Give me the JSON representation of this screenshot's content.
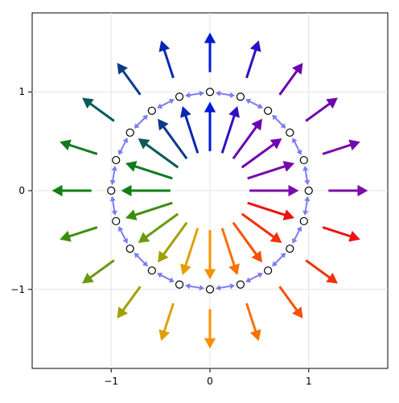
{
  "chart_data": {
    "type": "vector-field",
    "title": "",
    "xlabel": "",
    "ylabel": "",
    "xlim": [
      -1.8,
      1.8
    ],
    "ylim": [
      -1.8,
      1.8
    ],
    "xticks": [
      -1,
      0,
      1
    ],
    "yticks": [
      -1,
      0,
      1
    ],
    "xtick_labels": [
      "−1",
      "0",
      "1"
    ],
    "ytick_labels": [
      "−1",
      "0",
      "1"
    ],
    "grid": true,
    "n_directions": 20,
    "ring_radius": 1.0,
    "outer_arrows": {
      "start_radius": 1.2,
      "end_radius": 1.6
    },
    "inner_arrows": {
      "start_radius": 0.4,
      "end_radius": 0.9
    },
    "color_stops": [
      {
        "angle_deg": 0,
        "color": "#7b0ca8"
      },
      {
        "angle_deg": 54,
        "color": "#6a00b0"
      },
      {
        "angle_deg": 90,
        "color": "#0018d8"
      },
      {
        "angle_deg": 126,
        "color": "#0c3a8c"
      },
      {
        "angle_deg": 144,
        "color": "#0a5a5a"
      },
      {
        "angle_deg": 162,
        "color": "#107a20"
      },
      {
        "angle_deg": 180,
        "color": "#108010"
      },
      {
        "angle_deg": 216,
        "color": "#6a9a10"
      },
      {
        "angle_deg": 234,
        "color": "#a0a000"
      },
      {
        "angle_deg": 252,
        "color": "#e0a000"
      },
      {
        "angle_deg": 270,
        "color": "#f89000"
      },
      {
        "angle_deg": 306,
        "color": "#f85000"
      },
      {
        "angle_deg": 342,
        "color": "#f01010"
      },
      {
        "angle_deg": 360,
        "color": "#7b0ca8"
      }
    ],
    "ring_link_color": "#7a7cf0",
    "marker": {
      "fill": "#ffffff",
      "stroke": "#000000",
      "shape": "circle"
    }
  }
}
